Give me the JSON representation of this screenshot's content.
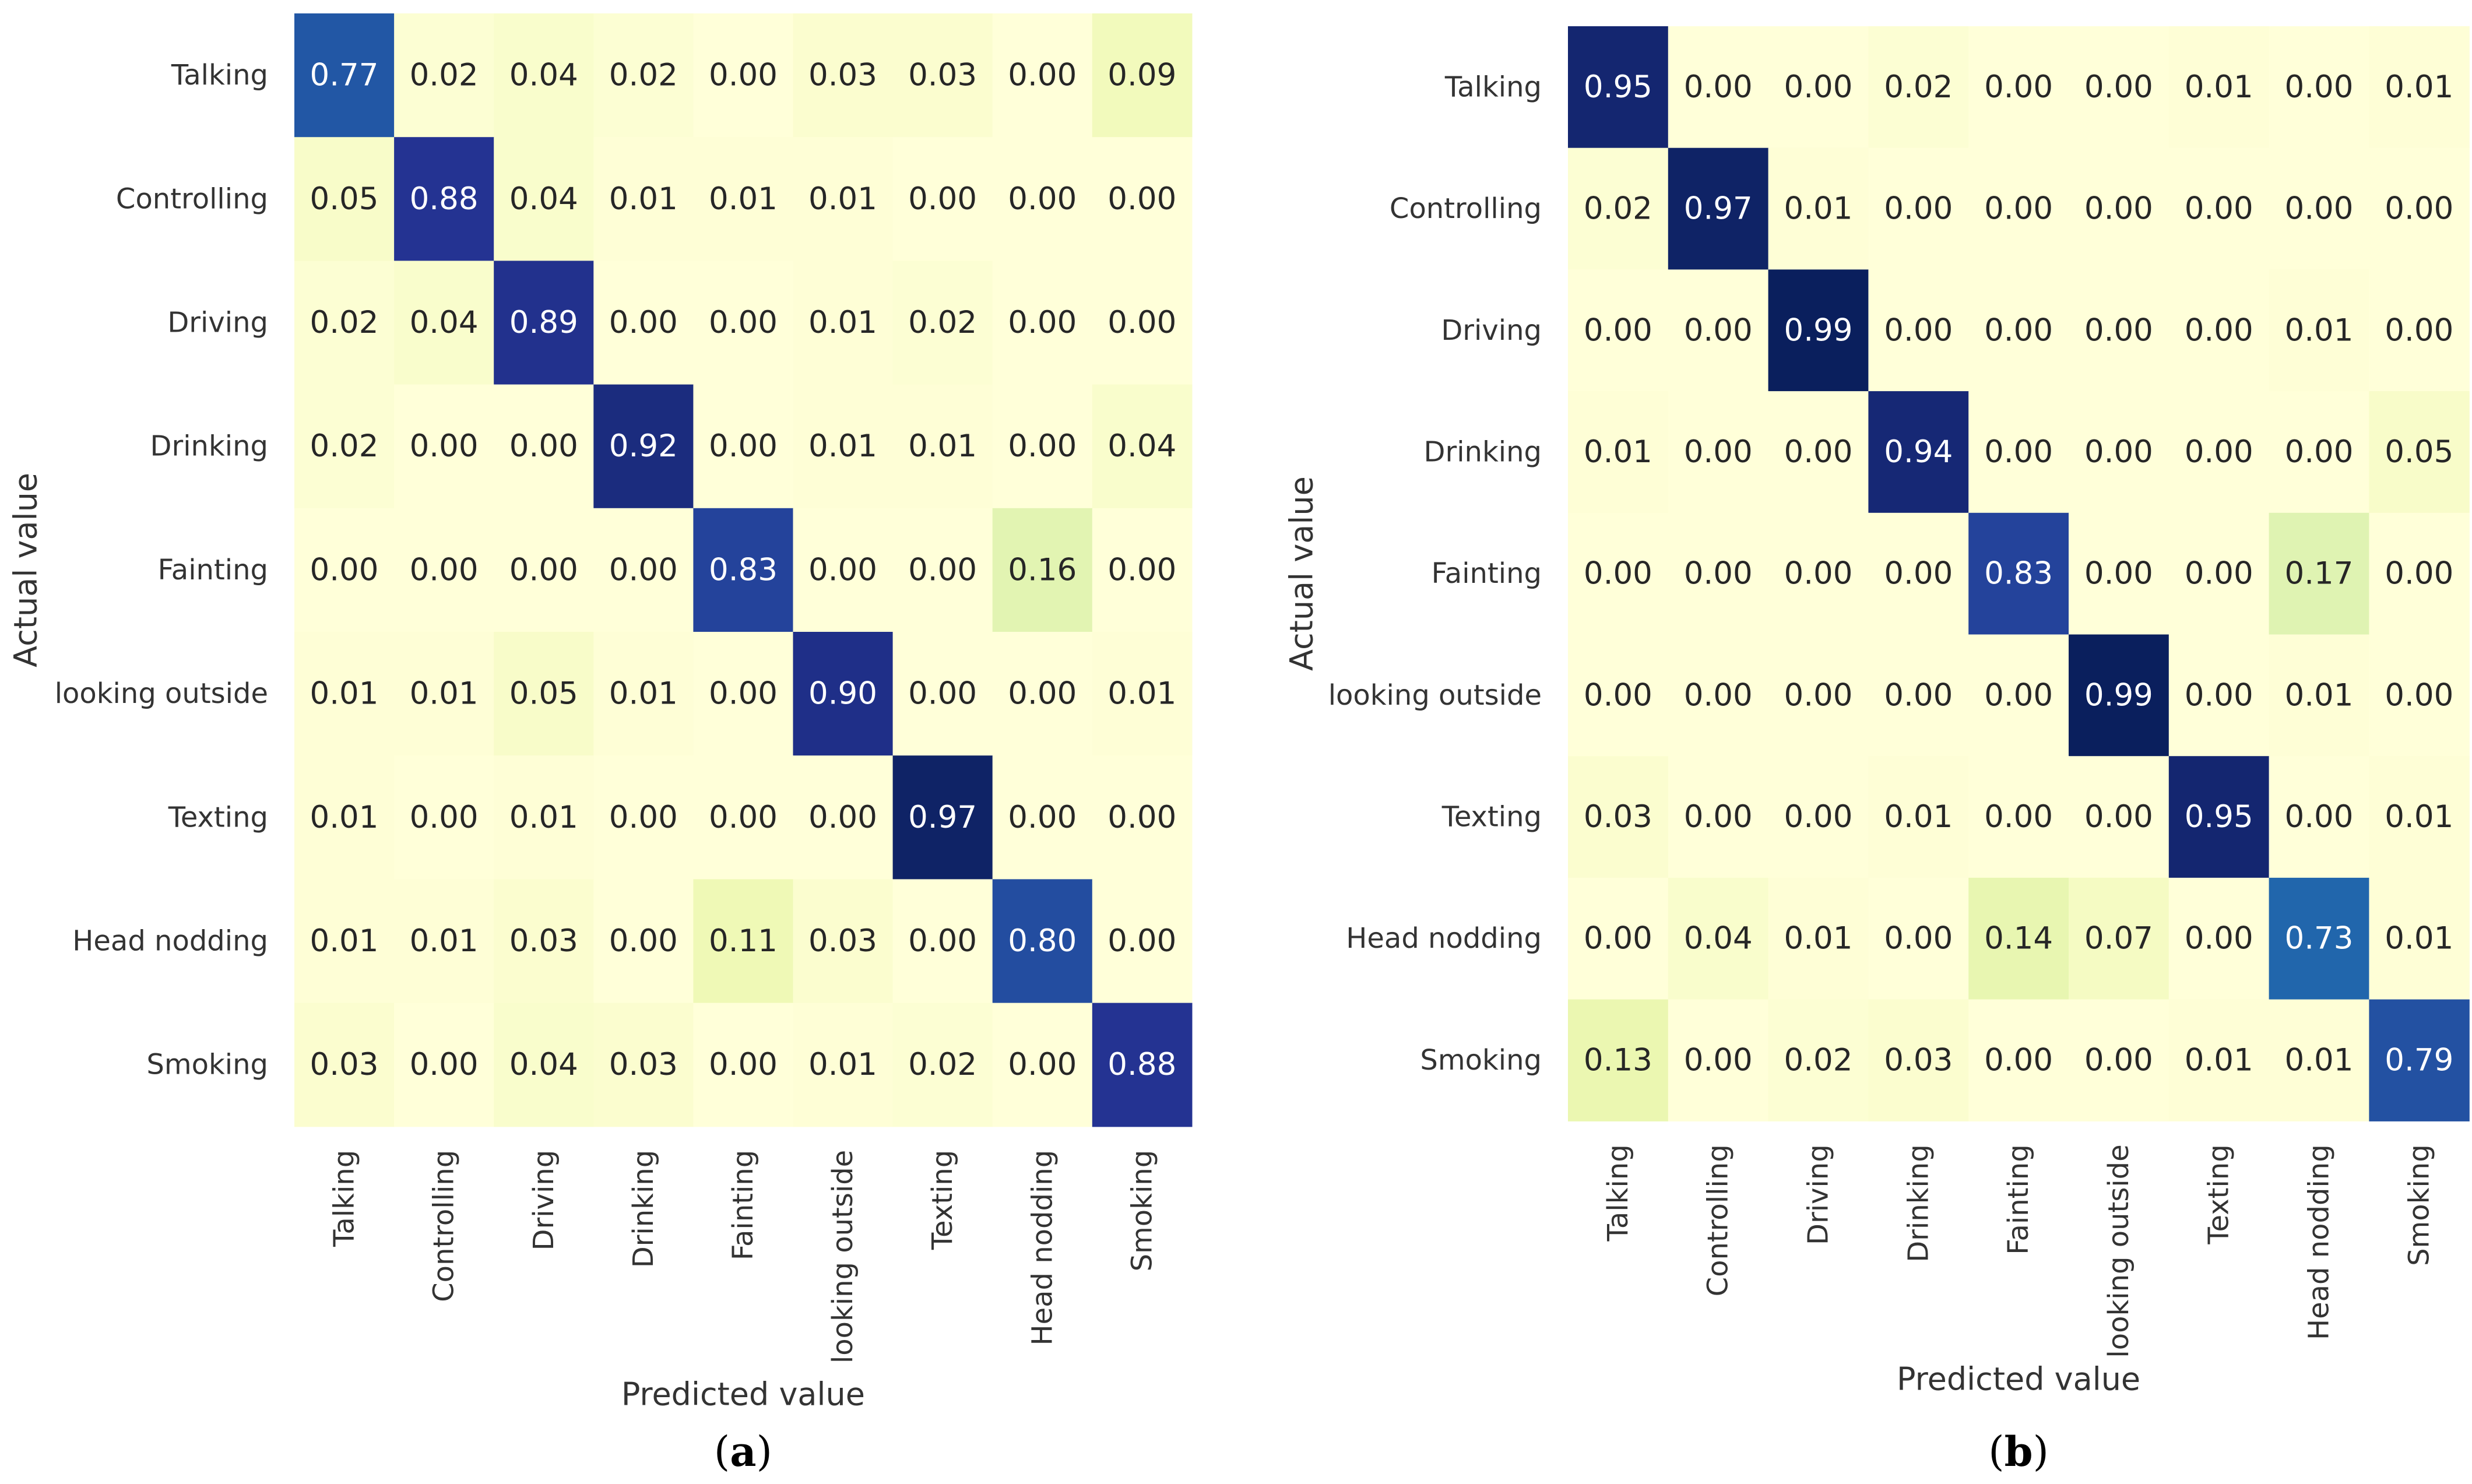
{
  "colormap": {
    "name": "YlGnBu",
    "low": "#ffffd9",
    "mid": "#41b6c4",
    "high": "#081d58"
  },
  "chart_data": [
    {
      "type": "heatmap",
      "panel_label": {
        "open": "(",
        "letter": "a",
        "close": ")"
      },
      "xlabel": "Predicted value",
      "ylabel": "Actual value",
      "rows": [
        "Talking",
        "Controlling",
        "Driving",
        "Drinking",
        "Fainting",
        "looking outside",
        "Texting",
        "Head nodding",
        "Smoking"
      ],
      "columns": [
        "Talking",
        "Controlling",
        "Driving",
        "Drinking",
        "Fainting",
        "looking outside",
        "Texting",
        "Head nodding",
        "Smoking"
      ],
      "values": [
        [
          "0.77",
          "0.02",
          "0.04",
          "0.02",
          "0.00",
          "0.03",
          "0.03",
          "0.00",
          "0.09"
        ],
        [
          "0.05",
          "0.88",
          "0.04",
          "0.01",
          "0.01",
          "0.01",
          "0.00",
          "0.00",
          "0.00"
        ],
        [
          "0.02",
          "0.04",
          "0.89",
          "0.00",
          "0.00",
          "0.01",
          "0.02",
          "0.00",
          "0.00"
        ],
        [
          "0.02",
          "0.00",
          "0.00",
          "0.92",
          "0.00",
          "0.01",
          "0.01",
          "0.00",
          "0.04"
        ],
        [
          "0.00",
          "0.00",
          "0.00",
          "0.00",
          "0.83",
          "0.00",
          "0.00",
          "0.16",
          "0.00"
        ],
        [
          "0.01",
          "0.01",
          "0.05",
          "0.01",
          "0.00",
          "0.90",
          "0.00",
          "0.00",
          "0.01"
        ],
        [
          "0.01",
          "0.00",
          "0.01",
          "0.00",
          "0.00",
          "0.00",
          "0.97",
          "0.00",
          "0.00"
        ],
        [
          "0.01",
          "0.01",
          "0.03",
          "0.00",
          "0.11",
          "0.03",
          "0.00",
          "0.80",
          "0.00"
        ],
        [
          "0.03",
          "0.00",
          "0.04",
          "0.03",
          "0.00",
          "0.01",
          "0.02",
          "0.00",
          "0.88"
        ]
      ]
    },
    {
      "type": "heatmap",
      "panel_label": {
        "open": "(",
        "letter": "b",
        "close": ")"
      },
      "xlabel": "Predicted value",
      "ylabel": "Actual value",
      "rows": [
        "Talking",
        "Controlling",
        "Driving",
        "Drinking",
        "Fainting",
        "looking outside",
        "Texting",
        "Head nodding",
        "Smoking"
      ],
      "columns": [
        "Talking",
        "Controlling",
        "Driving",
        "Drinking",
        "Fainting",
        "looking outside",
        "Texting",
        "Head nodding",
        "Smoking"
      ],
      "values": [
        [
          "0.95",
          "0.00",
          "0.00",
          "0.02",
          "0.00",
          "0.00",
          "0.01",
          "0.00",
          "0.01"
        ],
        [
          "0.02",
          "0.97",
          "0.01",
          "0.00",
          "0.00",
          "0.00",
          "0.00",
          "0.00",
          "0.00"
        ],
        [
          "0.00",
          "0.00",
          "0.99",
          "0.00",
          "0.00",
          "0.00",
          "0.00",
          "0.01",
          "0.00"
        ],
        [
          "0.01",
          "0.00",
          "0.00",
          "0.94",
          "0.00",
          "0.00",
          "0.00",
          "0.00",
          "0.05"
        ],
        [
          "0.00",
          "0.00",
          "0.00",
          "0.00",
          "0.83",
          "0.00",
          "0.00",
          "0.17",
          "0.00"
        ],
        [
          "0.00",
          "0.00",
          "0.00",
          "0.00",
          "0.00",
          "0.99",
          "0.00",
          "0.01",
          "0.00"
        ],
        [
          "0.03",
          "0.00",
          "0.00",
          "0.01",
          "0.00",
          "0.00",
          "0.95",
          "0.00",
          "0.01"
        ],
        [
          "0.00",
          "0.04",
          "0.01",
          "0.00",
          "0.14",
          "0.07",
          "0.00",
          "0.73",
          "0.01"
        ],
        [
          "0.13",
          "0.00",
          "0.02",
          "0.03",
          "0.00",
          "0.00",
          "0.01",
          "0.01",
          "0.79"
        ]
      ]
    }
  ]
}
